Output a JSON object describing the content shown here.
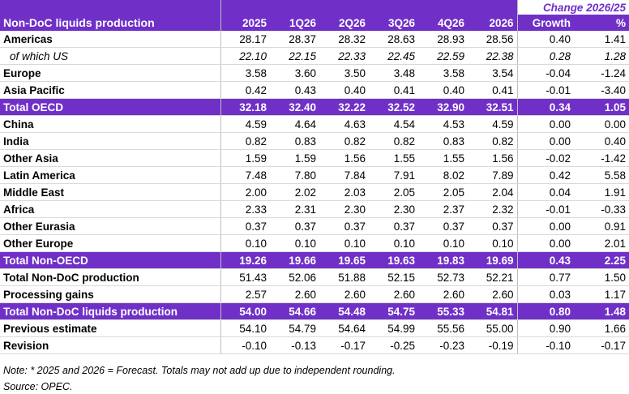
{
  "header": {
    "title": "Non-DoC liquids production",
    "columns": [
      "2025",
      "1Q26",
      "2Q26",
      "3Q26",
      "4Q26",
      "2026"
    ],
    "change_title": "Change 2026/25",
    "change_columns": [
      "Growth",
      "%"
    ]
  },
  "rows": [
    {
      "label": "Americas",
      "values": [
        "28.17",
        "28.37",
        "28.32",
        "28.63",
        "28.93",
        "28.56",
        "0.40",
        "1.41"
      ]
    },
    {
      "label": "of which US",
      "values": [
        "22.10",
        "22.15",
        "22.33",
        "22.45",
        "22.59",
        "22.38",
        "0.28",
        "1.28"
      ],
      "style": "italic"
    },
    {
      "label": "Europe",
      "values": [
        "3.58",
        "3.60",
        "3.50",
        "3.48",
        "3.58",
        "3.54",
        "-0.04",
        "-1.24"
      ]
    },
    {
      "label": "Asia Pacific",
      "values": [
        "0.42",
        "0.43",
        "0.40",
        "0.41",
        "0.40",
        "0.41",
        "-0.01",
        "-3.40"
      ]
    },
    {
      "label": "Total OECD",
      "values": [
        "32.18",
        "32.40",
        "32.22",
        "32.52",
        "32.90",
        "32.51",
        "0.34",
        "1.05"
      ],
      "style": "total"
    },
    {
      "label": "China",
      "values": [
        "4.59",
        "4.64",
        "4.63",
        "4.54",
        "4.53",
        "4.59",
        "0.00",
        "0.00"
      ]
    },
    {
      "label": "India",
      "values": [
        "0.82",
        "0.83",
        "0.82",
        "0.82",
        "0.83",
        "0.82",
        "0.00",
        "0.40"
      ]
    },
    {
      "label": "Other Asia",
      "values": [
        "1.59",
        "1.59",
        "1.56",
        "1.55",
        "1.55",
        "1.56",
        "-0.02",
        "-1.42"
      ]
    },
    {
      "label": "Latin America",
      "values": [
        "7.48",
        "7.80",
        "7.84",
        "7.91",
        "8.02",
        "7.89",
        "0.42",
        "5.58"
      ]
    },
    {
      "label": "Middle East",
      "values": [
        "2.00",
        "2.02",
        "2.03",
        "2.05",
        "2.05",
        "2.04",
        "0.04",
        "1.91"
      ]
    },
    {
      "label": "Africa",
      "values": [
        "2.33",
        "2.31",
        "2.30",
        "2.30",
        "2.37",
        "2.32",
        "-0.01",
        "-0.33"
      ]
    },
    {
      "label": "Other Eurasia",
      "values": [
        "0.37",
        "0.37",
        "0.37",
        "0.37",
        "0.37",
        "0.37",
        "0.00",
        "0.91"
      ]
    },
    {
      "label": "Other Europe",
      "values": [
        "0.10",
        "0.10",
        "0.10",
        "0.10",
        "0.10",
        "0.10",
        "0.00",
        "2.01"
      ]
    },
    {
      "label": "Total Non-OECD",
      "values": [
        "19.26",
        "19.66",
        "19.65",
        "19.63",
        "19.83",
        "19.69",
        "0.43",
        "2.25"
      ],
      "style": "total"
    },
    {
      "label": "Total Non-DoC production",
      "values": [
        "51.43",
        "52.06",
        "51.88",
        "52.15",
        "52.73",
        "52.21",
        "0.77",
        "1.50"
      ]
    },
    {
      "label": "Processing gains",
      "values": [
        "2.57",
        "2.60",
        "2.60",
        "2.60",
        "2.60",
        "2.60",
        "0.03",
        "1.17"
      ]
    },
    {
      "label": "Total Non-DoC liquids production",
      "values": [
        "54.00",
        "54.66",
        "54.48",
        "54.75",
        "55.33",
        "54.81",
        "0.80",
        "1.48"
      ],
      "style": "total"
    },
    {
      "label": "Previous estimate",
      "values": [
        "54.10",
        "54.79",
        "54.64",
        "54.99",
        "55.56",
        "55.00",
        "0.90",
        "1.66"
      ]
    },
    {
      "label": "Revision",
      "values": [
        "-0.10",
        "-0.13",
        "-0.17",
        "-0.25",
        "-0.23",
        "-0.19",
        "-0.10",
        "-0.17"
      ]
    }
  ],
  "footer": {
    "note": "Note: * 2025 and 2026 = Forecast. Totals may not add up due to independent rounding.",
    "source": "Source: OPEC."
  }
}
